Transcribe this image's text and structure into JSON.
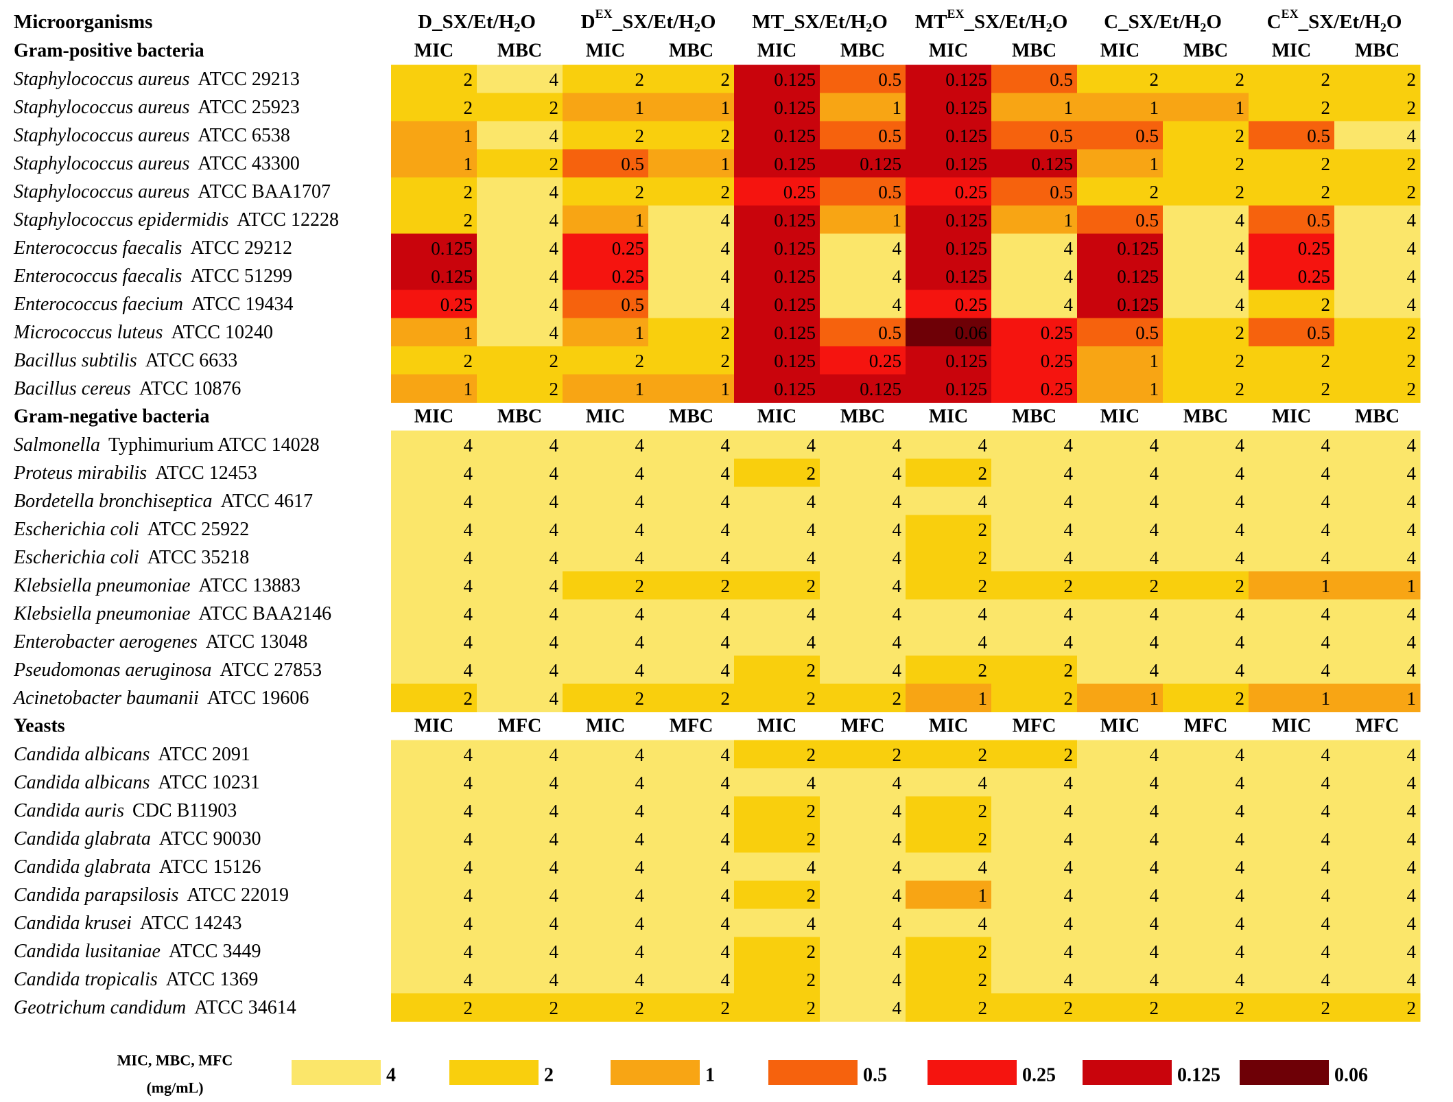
{
  "chart_data": {
    "type": "heatmap",
    "header_label": "Microorganisms",
    "columns": [
      {
        "label_main": "D",
        "label_sup": "",
        "label_rest": "_SX/Et/H",
        "label_sub": "2",
        "label_end": "O"
      },
      {
        "label_main": "D",
        "label_sup": "EX",
        "label_rest": "_SX/Et/H",
        "label_sub": "2",
        "label_end": "O"
      },
      {
        "label_main": "MT",
        "label_sup": "",
        "label_rest": "_SX/Et/H",
        "label_sub": "2",
        "label_end": "O"
      },
      {
        "label_main": "MT",
        "label_sup": "EX",
        "label_rest": "_SX/Et/H",
        "label_sub": "2",
        "label_end": "O"
      },
      {
        "label_main": "C",
        "label_sup": "",
        "label_rest": "_SX/Et/H",
        "label_sub": "2",
        "label_end": "O"
      },
      {
        "label_main": "C",
        "label_sup": "EX",
        "label_rest": "_SX/Et/H",
        "label_sub": "2",
        "label_end": "O"
      }
    ],
    "sections": [
      {
        "title": "Gram-positive bacteria",
        "sub_headers": [
          "MIC",
          "MBC"
        ],
        "rows": [
          {
            "genus": "Staphylococcus aureus",
            "strain": "ATCC 29213",
            "values": [
              2,
              4,
              2,
              2,
              0.125,
              0.5,
              0.125,
              0.5,
              2,
              2,
              2,
              2
            ]
          },
          {
            "genus": "Staphylococcus aureus",
            "strain": "ATCC 25923",
            "values": [
              2,
              2,
              1,
              1,
              0.125,
              1,
              0.125,
              1,
              1,
              1,
              2,
              2
            ]
          },
          {
            "genus": "Staphylococcus aureus",
            "strain": "ATCC 6538",
            "values": [
              1,
              4,
              2,
              2,
              0.125,
              0.5,
              0.125,
              0.5,
              0.5,
              2,
              0.5,
              4
            ]
          },
          {
            "genus": "Staphylococcus aureus",
            "strain": "ATCC 43300",
            "values": [
              1,
              2,
              0.5,
              1,
              0.125,
              0.125,
              0.125,
              0.125,
              1,
              2,
              2,
              2
            ]
          },
          {
            "genus": "Staphylococcus aureus",
            "strain": "ATCC BAA1707",
            "values": [
              2,
              4,
              2,
              2,
              0.25,
              0.5,
              0.25,
              0.5,
              2,
              2,
              2,
              2
            ]
          },
          {
            "genus": "Staphylococcus epidermidis",
            "strain": "ATCC 12228",
            "values": [
              2,
              4,
              1,
              4,
              0.125,
              1,
              0.125,
              1,
              0.5,
              4,
              0.5,
              4
            ]
          },
          {
            "genus": "Enterococcus faecalis",
            "strain": "ATCC 29212",
            "values": [
              0.125,
              4,
              0.25,
              4,
              0.125,
              4,
              0.125,
              4,
              0.125,
              4,
              0.25,
              4
            ]
          },
          {
            "genus": "Enterococcus faecalis",
            "strain": "ATCC 51299",
            "values": [
              0.125,
              4,
              0.25,
              4,
              0.125,
              4,
              0.125,
              4,
              0.125,
              4,
              0.25,
              4
            ]
          },
          {
            "genus": "Enterococcus faecium",
            "strain": "ATCC 19434",
            "values": [
              0.25,
              4,
              0.5,
              4,
              0.125,
              4,
              0.25,
              4,
              0.125,
              4,
              2,
              4
            ]
          },
          {
            "genus": "Micrococcus luteus",
            "strain": "ATCC 10240",
            "values": [
              1,
              4,
              1,
              2,
              0.125,
              0.5,
              0.06,
              0.25,
              0.5,
              2,
              0.5,
              2
            ]
          },
          {
            "genus": "Bacillus subtilis",
            "strain": "ATCC 6633",
            "values": [
              2,
              2,
              2,
              2,
              0.125,
              0.25,
              0.125,
              0.25,
              1,
              2,
              2,
              2
            ]
          },
          {
            "genus": "Bacillus cereus",
            "strain": "ATCC 10876",
            "values": [
              1,
              2,
              1,
              1,
              0.125,
              0.125,
              0.125,
              0.25,
              1,
              2,
              2,
              2
            ]
          }
        ]
      },
      {
        "title": "Gram-negative bacteria",
        "sub_headers": [
          "MIC",
          "MBC"
        ],
        "rows": [
          {
            "genus": "Salmonella",
            "strain": "Typhimurium ATCC 14028",
            "values": [
              4,
              4,
              4,
              4,
              4,
              4,
              4,
              4,
              4,
              4,
              4,
              4
            ]
          },
          {
            "genus": "Proteus mirabilis",
            "strain": "ATCC 12453",
            "values": [
              4,
              4,
              4,
              4,
              2,
              4,
              2,
              4,
              4,
              4,
              4,
              4
            ]
          },
          {
            "genus": "Bordetella bronchiseptica",
            "strain": "ATCC 4617",
            "values": [
              4,
              4,
              4,
              4,
              4,
              4,
              4,
              4,
              4,
              4,
              4,
              4
            ]
          },
          {
            "genus": "Escherichia coli",
            "strain": "ATCC 25922",
            "values": [
              4,
              4,
              4,
              4,
              4,
              4,
              2,
              4,
              4,
              4,
              4,
              4
            ]
          },
          {
            "genus": "Escherichia coli",
            "strain": "ATCC 35218",
            "values": [
              4,
              4,
              4,
              4,
              4,
              4,
              2,
              4,
              4,
              4,
              4,
              4
            ]
          },
          {
            "genus": "Klebsiella pneumoniae",
            "strain": "ATCC 13883",
            "values": [
              4,
              4,
              2,
              2,
              2,
              4,
              2,
              2,
              2,
              2,
              1,
              1
            ]
          },
          {
            "genus": "Klebsiella pneumoniae",
            "strain": "ATCC BAA2146",
            "values": [
              4,
              4,
              4,
              4,
              4,
              4,
              4,
              4,
              4,
              4,
              4,
              4
            ]
          },
          {
            "genus": "Enterobacter aerogenes",
            "strain": "ATCC 13048",
            "values": [
              4,
              4,
              4,
              4,
              4,
              4,
              4,
              4,
              4,
              4,
              4,
              4
            ]
          },
          {
            "genus": "Pseudomonas aeruginosa",
            "strain": "ATCC 27853",
            "values": [
              4,
              4,
              4,
              4,
              2,
              4,
              2,
              2,
              4,
              4,
              4,
              4
            ]
          },
          {
            "genus": "Acinetobacter baumanii",
            "strain": "ATCC 19606",
            "values": [
              2,
              4,
              2,
              2,
              2,
              2,
              1,
              2,
              1,
              2,
              1,
              1
            ]
          }
        ]
      },
      {
        "title": "Yeasts",
        "sub_headers": [
          "MIC",
          "MFC"
        ],
        "rows": [
          {
            "genus": "Candida albicans",
            "strain": "ATCC 2091",
            "values": [
              4,
              4,
              4,
              4,
              2,
              2,
              2,
              2,
              4,
              4,
              4,
              4
            ]
          },
          {
            "genus": "Candida albicans",
            "strain": "ATCC 10231",
            "values": [
              4,
              4,
              4,
              4,
              4,
              4,
              4,
              4,
              4,
              4,
              4,
              4
            ]
          },
          {
            "genus": "Candida auris",
            "strain": "CDC B11903",
            "values": [
              4,
              4,
              4,
              4,
              2,
              4,
              2,
              4,
              4,
              4,
              4,
              4
            ]
          },
          {
            "genus": "Candida glabrata",
            "strain": "ATCC 90030",
            "values": [
              4,
              4,
              4,
              4,
              2,
              4,
              2,
              4,
              4,
              4,
              4,
              4
            ]
          },
          {
            "genus": "Candida glabrata",
            "strain": "ATCC 15126",
            "values": [
              4,
              4,
              4,
              4,
              4,
              4,
              4,
              4,
              4,
              4,
              4,
              4
            ]
          },
          {
            "genus": "Candida parapsilosis",
            "strain": "ATCC 22019",
            "values": [
              4,
              4,
              4,
              4,
              2,
              4,
              1,
              4,
              4,
              4,
              4,
              4
            ]
          },
          {
            "genus": "Candida krusei",
            "strain": "ATCC 14243",
            "values": [
              4,
              4,
              4,
              4,
              4,
              4,
              4,
              4,
              4,
              4,
              4,
              4
            ]
          },
          {
            "genus": "Candida lusitaniae",
            "strain": "ATCC 3449",
            "values": [
              4,
              4,
              4,
              4,
              2,
              4,
              2,
              4,
              4,
              4,
              4,
              4
            ]
          },
          {
            "genus": "Candida tropicalis",
            "strain": "ATCC 1369",
            "values": [
              4,
              4,
              4,
              4,
              2,
              4,
              2,
              4,
              4,
              4,
              4,
              4
            ]
          },
          {
            "genus": "Geotrichum candidum",
            "strain": "ATCC 34614",
            "values": [
              2,
              2,
              2,
              2,
              2,
              4,
              2,
              2,
              2,
              2,
              2,
              2
            ]
          }
        ]
      }
    ],
    "legend": {
      "title_line1": "MIC, MBC, MFC",
      "title_line2": "(mg/mL)",
      "items": [
        {
          "label": "4",
          "value": 4,
          "color": "#FBE66A"
        },
        {
          "label": "2",
          "value": 2,
          "color": "#F9CF0D"
        },
        {
          "label": "1",
          "value": 1,
          "color": "#F8A514"
        },
        {
          "label": "0.5",
          "value": 0.5,
          "color": "#F6620D"
        },
        {
          "label": "0.25",
          "value": 0.25,
          "color": "#F5140F"
        },
        {
          "label": "0.125",
          "value": 0.125,
          "color": "#C9040C"
        },
        {
          "label": "0.06",
          "value": 0.06,
          "color": "#6E0006"
        }
      ]
    }
  }
}
